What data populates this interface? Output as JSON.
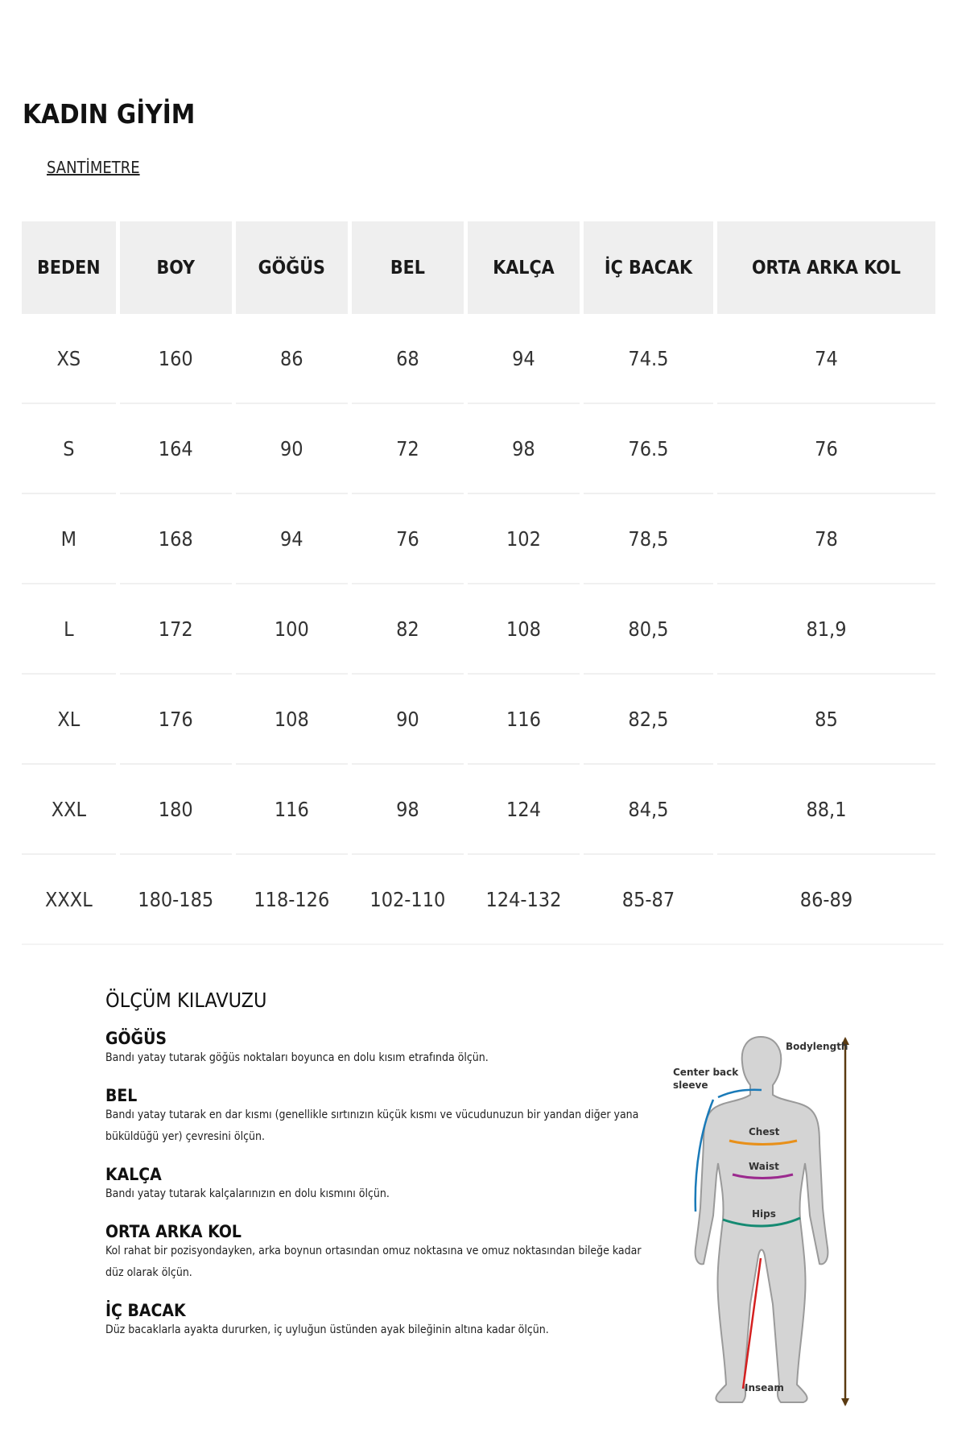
{
  "title": "KADIN GİYİM",
  "unit_link": "SANTİMETRE",
  "table": {
    "headers": [
      "BEDEN",
      "BOY",
      "GÖĞÜS",
      "BEL",
      "KALÇA",
      "İÇ BACAK",
      "ORTA ARKA KOL"
    ],
    "rows": [
      [
        "XS",
        "160",
        "86",
        "68",
        "94",
        "74.5",
        "74"
      ],
      [
        "S",
        "164",
        "90",
        "72",
        "98",
        "76.5",
        "76"
      ],
      [
        "M",
        "168",
        "94",
        "76",
        "102",
        "78,5",
        "78"
      ],
      [
        "L",
        "172",
        "100",
        "82",
        "108",
        "80,5",
        "81,9"
      ],
      [
        "XL",
        "176",
        "108",
        "90",
        "116",
        "82,5",
        "85"
      ],
      [
        "XXL",
        "180",
        "116",
        "98",
        "124",
        "84,5",
        "88,1"
      ],
      [
        "XXXL",
        "180-185",
        "118-126",
        "102-110",
        "124-132",
        "85-87",
        "86-89"
      ]
    ]
  },
  "guide": {
    "title": "ÖLÇÜM KILAVUZU",
    "sections": [
      {
        "heading": "GÖĞÜS",
        "text": "Bandı yatay tutarak göğüs noktaları boyunca en dolu kısım etrafında ölçün."
      },
      {
        "heading": "BEL",
        "text": "Bandı yatay tutarak en dar kısmı (genellikle sırtınızın küçük kısmı ve vücudunuzun bir yandan diğer yana büküldüğü yer) çevresini ölçün."
      },
      {
        "heading": "KALÇA",
        "text": "Bandı yatay tutarak kalçalarınızın en dolu kısmını ölçün."
      },
      {
        "heading": "ORTA ARKA KOL",
        "text": "Kol rahat bir pozisyondayken, arka boynun ortasından omuz noktasına ve omuz noktasından bileğe kadar düz olarak ölçün."
      },
      {
        "heading": "İÇ BACAK",
        "text": "Düz bacaklarla ayakta dururken, iç uyluğun üstünden ayak bileğinin altına kadar ölçün."
      }
    ]
  },
  "figure": {
    "labels": {
      "bodylength": "Bodylength",
      "center_back_1": "Center back",
      "center_back_2": "sleeve",
      "chest": "Chest",
      "waist": "Waist",
      "hips": "Hips",
      "inseam": "Inseam"
    },
    "colors": {
      "silhouette": "#d4d4d4",
      "sleeve": "#1a7ab8",
      "chest": "#e8901a",
      "waist": "#9b2a8e",
      "hips": "#158a72",
      "inseam": "#d42020",
      "bodylength": "#5a3a10"
    }
  }
}
